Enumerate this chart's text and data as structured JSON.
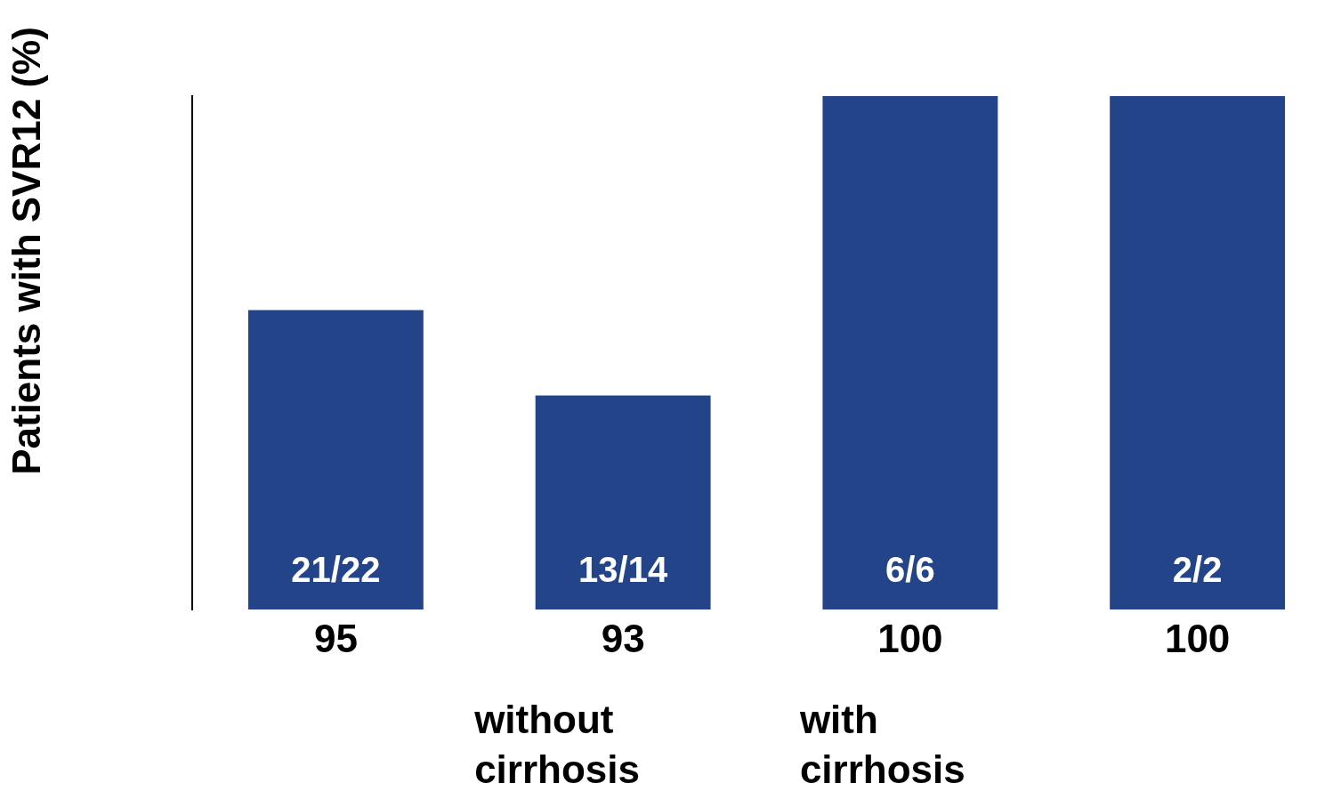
{
  "chart_data": {
    "type": "bar",
    "ylabel": "Patients with SVR12 (%)",
    "categories": [
      null,
      null,
      null,
      null
    ],
    "values": [
      95,
      93,
      100,
      100
    ],
    "color": "#24448a",
    "ylim": [
      88,
      100
    ],
    "data_labels": true,
    "tick_labels": false,
    "grid": false,
    "legend": false,
    "annotations": [
      "21/22",
      "13/14",
      "6/6",
      "2/2",
      "without cirrhosis",
      "with cirrhosis"
    ]
  }
}
